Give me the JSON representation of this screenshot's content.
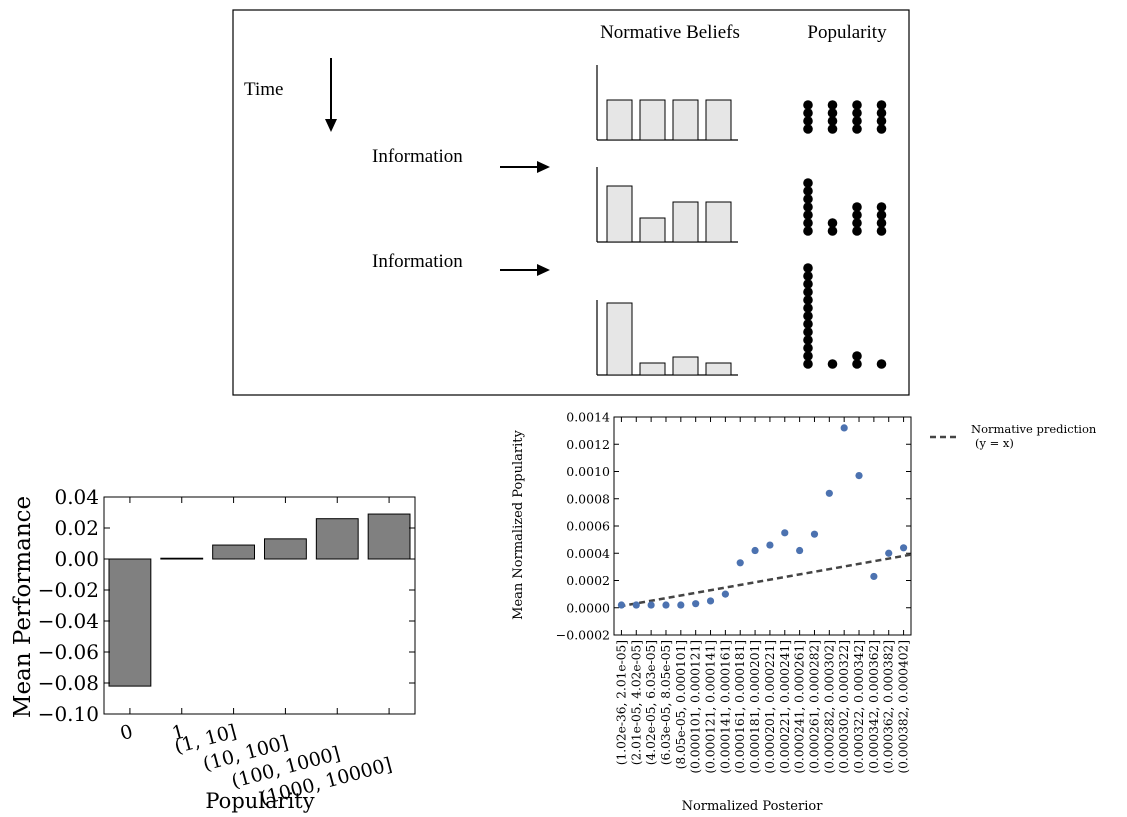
{
  "diagram": {
    "header_beliefs": "Normative Beliefs",
    "header_popularity": "Popularity",
    "time_label": "Time",
    "info_label_1": "Information",
    "info_label_2": "Information",
    "rows": [
      {
        "beliefs": [
          1,
          1,
          1,
          1
        ],
        "dots": [
          4,
          4,
          4,
          4
        ]
      },
      {
        "beliefs": [
          1.4,
          0.6,
          1,
          1
        ],
        "dots": [
          7,
          2,
          4,
          4
        ]
      },
      {
        "beliefs": [
          1.8,
          0.3,
          0.45,
          0.3
        ],
        "dots": [
          13,
          1,
          2,
          1
        ]
      }
    ]
  },
  "chart_data": [
    {
      "type": "bar",
      "title": "",
      "xlabel": "Popularity",
      "ylabel": "Mean Performance",
      "categories": [
        "0",
        "1",
        "(1, 10]",
        "(10, 100]",
        "(100, 1000]",
        "(1000, 10000]"
      ],
      "values": [
        -0.082,
        0.0005,
        0.009,
        0.013,
        0.026,
        0.029
      ],
      "ylim": [
        -0.1,
        0.04
      ],
      "yticks": [
        "0.04",
        "0.02",
        "0.00",
        "−0.02",
        "−0.04",
        "−0.06",
        "−0.08",
        "−0.10"
      ],
      "ytick_values": [
        0.04,
        0.02,
        0.0,
        -0.02,
        -0.04,
        -0.06,
        -0.08,
        -0.1
      ],
      "bar_color": "#808080",
      "grid": false
    },
    {
      "type": "scatter",
      "title": "",
      "xlabel": "Normalized Posterior",
      "ylabel": "Mean Normalized Popularity",
      "categories": [
        "(1.02e-36, 2.01e-05]",
        "(2.01e-05, 4.02e-05]",
        "(4.02e-05, 6.03e-05]",
        "(6.03e-05, 8.05e-05]",
        "(8.05e-05, 0.000101]",
        "(0.000101, 0.000121]",
        "(0.000121, 0.000141]",
        "(0.000141, 0.000161]",
        "(0.000161, 0.000181]",
        "(0.000181, 0.000201]",
        "(0.000201, 0.000221]",
        "(0.000221, 0.000241]",
        "(0.000241, 0.000261]",
        "(0.000261, 0.000282]",
        "(0.000282, 0.000302]",
        "(0.000302, 0.000322]",
        "(0.000322, 0.000342]",
        "(0.000342, 0.000362]",
        "(0.000362, 0.000382]",
        "(0.000382, 0.000402]"
      ],
      "values": [
        2e-05,
        2e-05,
        2e-05,
        2e-05,
        2e-05,
        3e-05,
        5e-05,
        0.0001,
        0.00033,
        0.00042,
        0.00046,
        0.00055,
        0.00042,
        0.00054,
        0.00084,
        0.00132,
        0.00097,
        0.00023,
        0.0004,
        0.00044
      ],
      "ylim": [
        -0.0002,
        0.0014
      ],
      "yticks": [
        "0.0014",
        "0.0012",
        "0.0010",
        "0.0008",
        "0.0006",
        "0.0004",
        "0.0002",
        "0.0000",
        "−0.0002"
      ],
      "ytick_values": [
        0.0014,
        0.0012,
        0.001,
        0.0008,
        0.0006,
        0.0004,
        0.0002,
        0.0,
        -0.0002
      ],
      "reference_line": {
        "from": 1e-05,
        "to": 0.00039
      },
      "point_color": "#4c72b0",
      "line_color": "#444444",
      "legend": {
        "label_1": "Normative prediction",
        "label_2": "(y = x)",
        "placement": "outside-right"
      },
      "grid": false
    }
  ]
}
